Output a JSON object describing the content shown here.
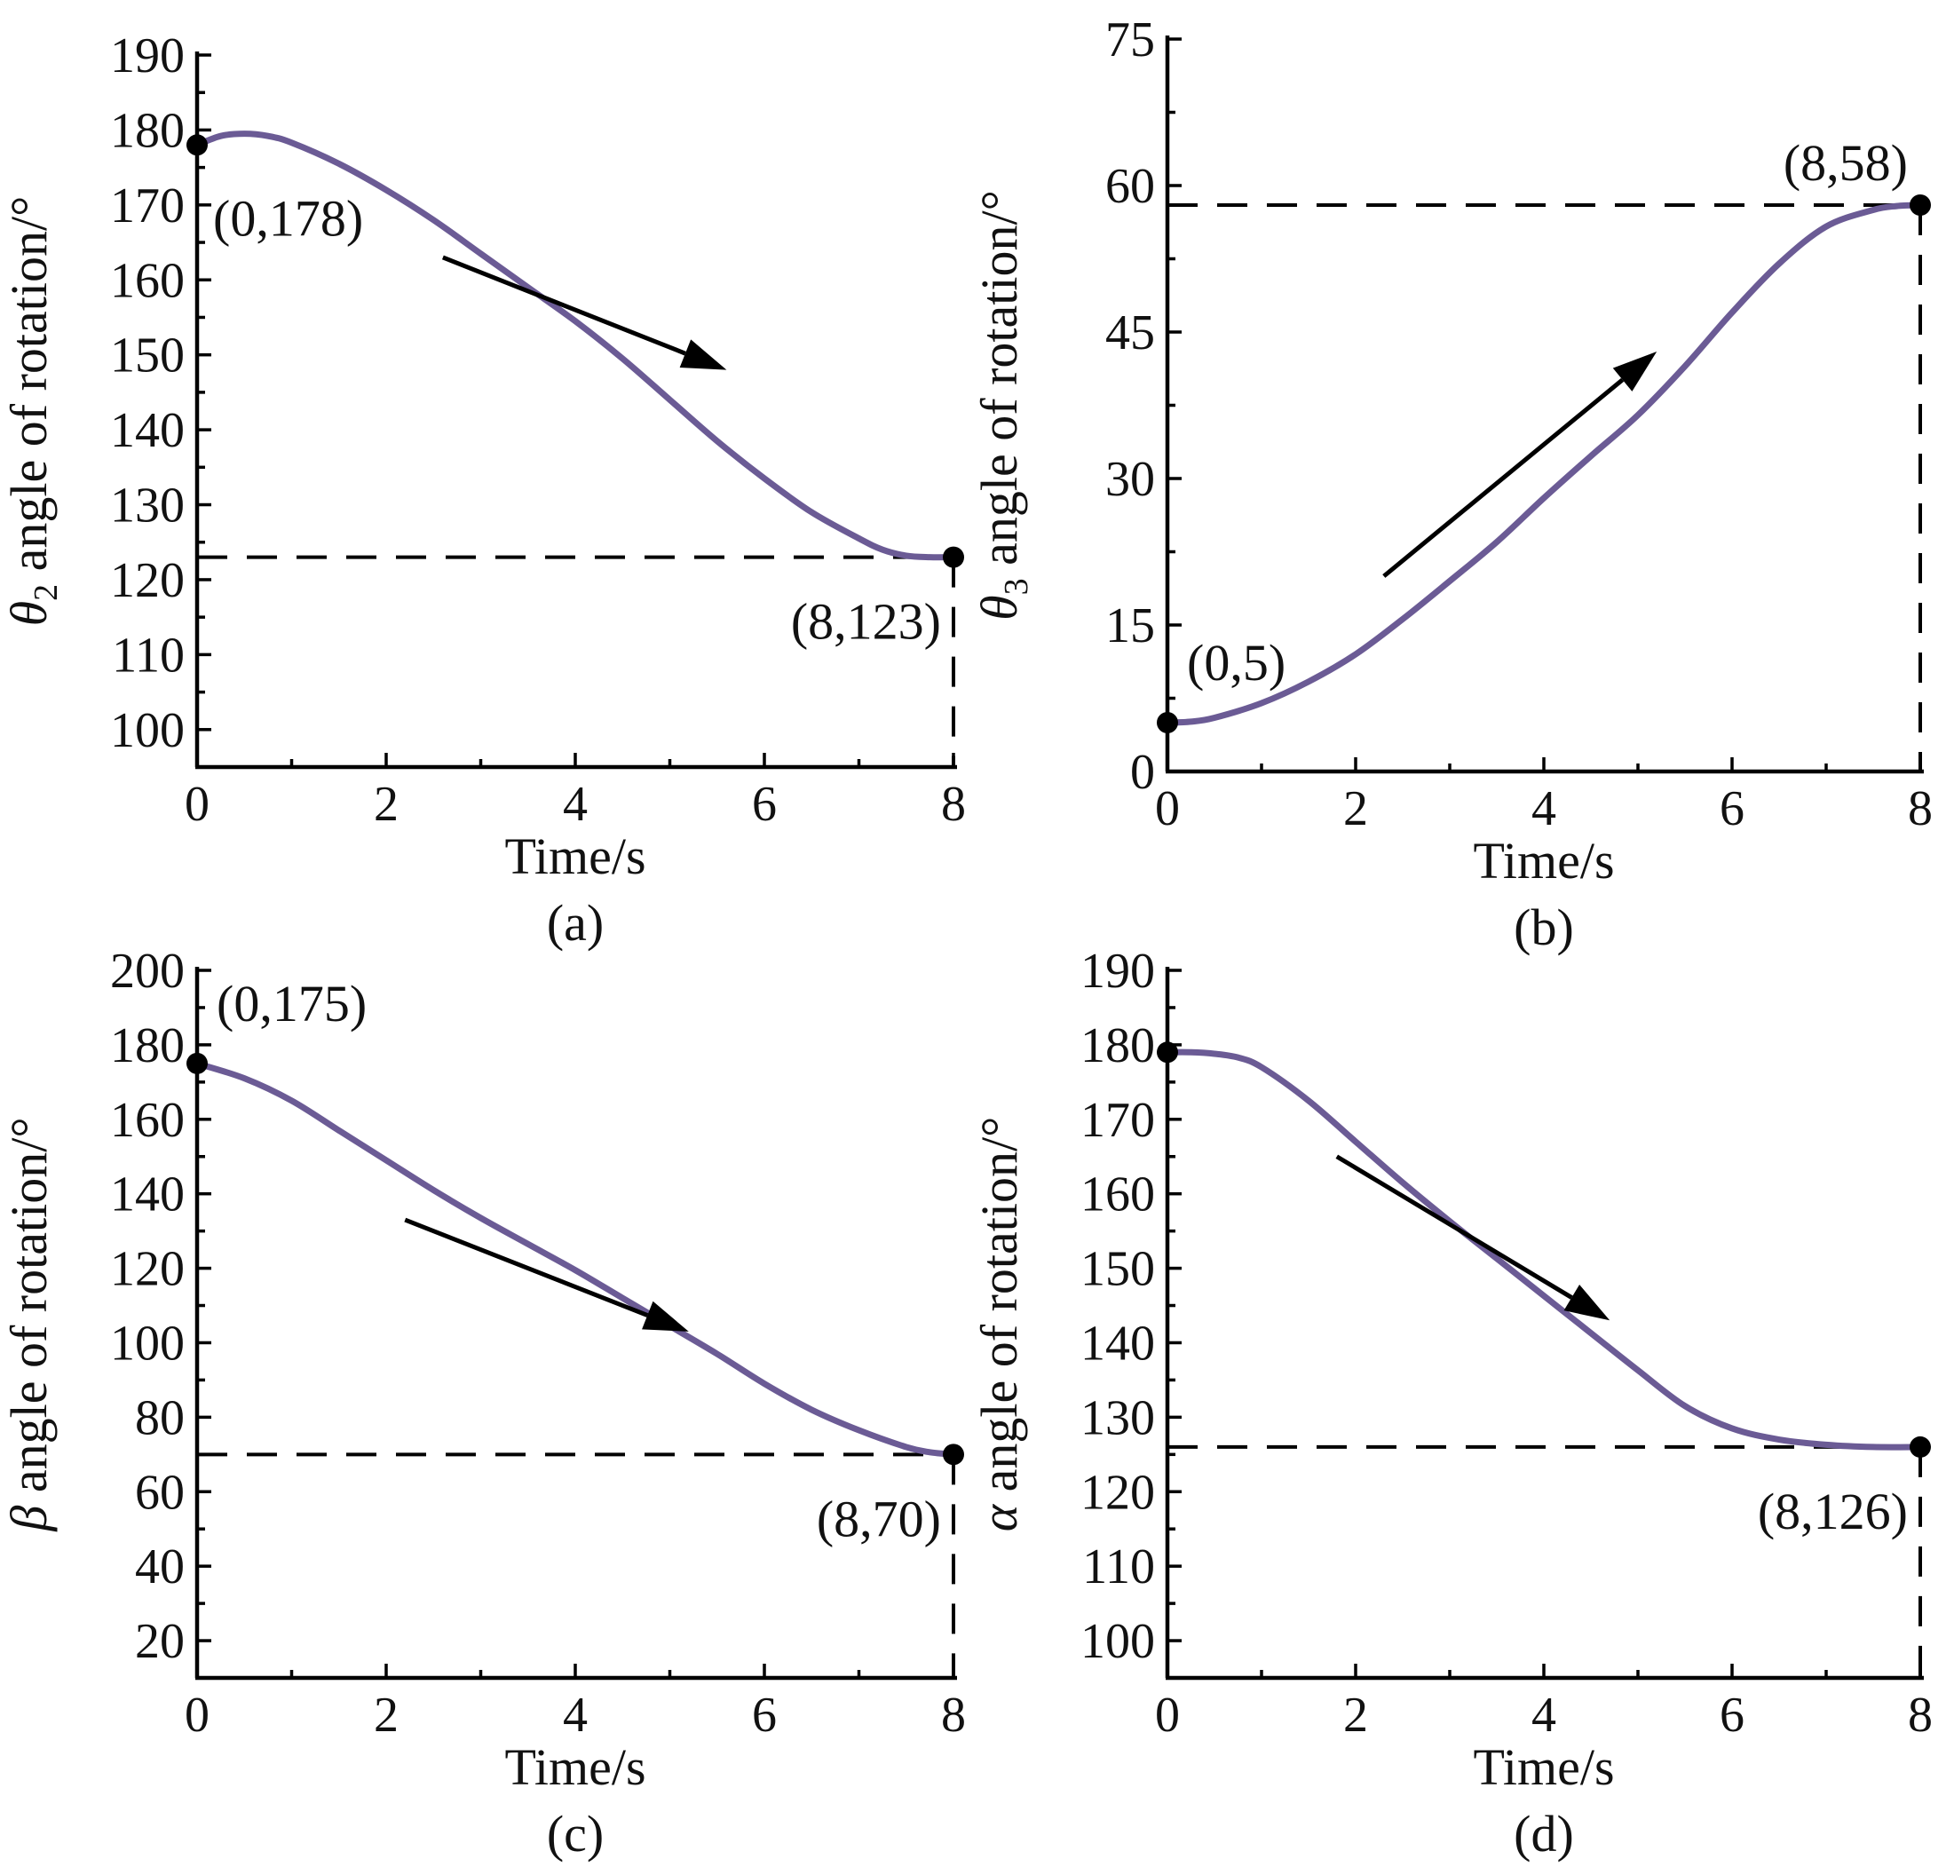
{
  "colors": {
    "series": "#6b5b95",
    "axis": "#000000",
    "text": "#111111"
  },
  "chart_data": [
    {
      "type": "line",
      "panel": "(a)",
      "xlabel": "Time/s",
      "ylabel_symbol": "θ",
      "ylabel_subscript": "2",
      "ylabel_text": " angle of rotation/°",
      "xlim": [
        0,
        8
      ],
      "ylim": [
        95,
        190
      ],
      "xticks": [
        0,
        2,
        4,
        6,
        8
      ],
      "yticks": [
        100,
        110,
        120,
        130,
        140,
        150,
        160,
        170,
        180,
        190
      ],
      "series": [
        {
          "x": [
            0,
            0.25,
            0.5,
            0.75,
            1,
            1.5,
            2,
            2.5,
            3,
            3.5,
            4,
            4.5,
            5,
            5.5,
            6,
            6.5,
            7,
            7.25,
            7.5,
            7.75,
            8
          ],
          "values": [
            178,
            179.2,
            179.5,
            179.2,
            178.3,
            175.5,
            172,
            168,
            163.5,
            159,
            154.5,
            149.5,
            144,
            138.5,
            133.5,
            129,
            125.5,
            124,
            123.2,
            123,
            123
          ]
        }
      ],
      "ref_y": 123,
      "arrow": {
        "from": [
          2.6,
          163
        ],
        "to": [
          5.6,
          148
        ],
        "direction": "down"
      },
      "points": [
        {
          "x": 0,
          "y": 178,
          "label": "(0,178)",
          "label_pos": "below-right"
        },
        {
          "x": 8,
          "y": 123,
          "label": "(8,123)",
          "label_pos": "below-left"
        }
      ]
    },
    {
      "type": "line",
      "panel": "(b)",
      "xlabel": "Time/s",
      "ylabel_symbol": "θ",
      "ylabel_subscript": "3",
      "ylabel_text": " angle of rotation/°",
      "xlim": [
        0,
        8
      ],
      "ylim": [
        0,
        75
      ],
      "xticks": [
        0,
        2,
        4,
        6,
        8
      ],
      "yticks": [
        0,
        15,
        30,
        45,
        60,
        75
      ],
      "series": [
        {
          "x": [
            0,
            0.25,
            0.5,
            1,
            1.5,
            2,
            2.5,
            3,
            3.5,
            4,
            4.5,
            5,
            5.5,
            6,
            6.5,
            7,
            7.5,
            7.75,
            8
          ],
          "values": [
            5,
            5.1,
            5.5,
            7,
            9.2,
            12,
            15.6,
            19.5,
            23.5,
            28,
            32.3,
            36.5,
            41.5,
            47,
            52,
            55.8,
            57.5,
            57.9,
            58
          ]
        }
      ],
      "ref_y": 58,
      "arrow": {
        "from": [
          2.3,
          20
        ],
        "to": [
          5.2,
          43
        ],
        "direction": "up"
      },
      "points": [
        {
          "x": 0,
          "y": 5,
          "label": "(0,5)",
          "label_pos": "above-right"
        },
        {
          "x": 8,
          "y": 58,
          "label": "(8,58)",
          "label_pos": "above-left"
        }
      ]
    },
    {
      "type": "line",
      "panel": "(c)",
      "xlabel": "Time/s",
      "ylabel_symbol": "β",
      "ylabel_subscript": "",
      "ylabel_text": " angle of rotation/°",
      "xlim": [
        0,
        8
      ],
      "ylim": [
        10,
        200
      ],
      "xticks": [
        0,
        2,
        4,
        6,
        8
      ],
      "yticks": [
        20,
        40,
        60,
        80,
        100,
        120,
        140,
        160,
        180,
        200
      ],
      "series": [
        {
          "x": [
            0,
            0.5,
            1,
            1.5,
            2,
            2.5,
            3,
            3.5,
            4,
            4.5,
            5,
            5.5,
            6,
            6.5,
            7,
            7.5,
            7.75,
            8
          ],
          "values": [
            175,
            171,
            165,
            157,
            149,
            141,
            133.5,
            126.5,
            119.5,
            112,
            104.5,
            97,
            89,
            82,
            76.5,
            72,
            70.6,
            70
          ]
        }
      ],
      "ref_y": 70,
      "arrow": {
        "from": [
          2.2,
          133
        ],
        "to": [
          5.2,
          103
        ],
        "direction": "down"
      },
      "points": [
        {
          "x": 0,
          "y": 175,
          "label": "(0,175)",
          "label_pos": "above-right"
        },
        {
          "x": 8,
          "y": 70,
          "label": "(8,70)",
          "label_pos": "below-left"
        }
      ]
    },
    {
      "type": "line",
      "panel": "(d)",
      "xlabel": "Time/s",
      "ylabel_symbol": "α",
      "ylabel_subscript": "",
      "ylabel_text": " angle of rotation/°",
      "xlim": [
        0,
        8
      ],
      "ylim": [
        95,
        190
      ],
      "xticks": [
        0,
        2,
        4,
        6,
        8
      ],
      "yticks": [
        100,
        110,
        120,
        130,
        140,
        150,
        160,
        170,
        180,
        190
      ],
      "series": [
        {
          "x": [
            0,
            0.25,
            0.5,
            0.75,
            1,
            1.5,
            2,
            2.5,
            3,
            3.5,
            4,
            4.5,
            5,
            5.5,
            6,
            6.5,
            7,
            7.5,
            8
          ],
          "values": [
            179,
            179,
            178.8,
            178.3,
            177,
            172.5,
            167,
            161.5,
            156.3,
            151.3,
            146.3,
            141.3,
            136.3,
            131.5,
            128.5,
            127,
            126.3,
            126,
            126
          ]
        }
      ],
      "ref_y": 126,
      "arrow": {
        "from": [
          1.8,
          165
        ],
        "to": [
          4.7,
          143
        ],
        "direction": "down"
      },
      "points": [
        {
          "x": 0,
          "y": 179,
          "label": "",
          "label_pos": "none"
        },
        {
          "x": 8,
          "y": 126,
          "label": "(8,126)",
          "label_pos": "below-left"
        }
      ]
    }
  ]
}
